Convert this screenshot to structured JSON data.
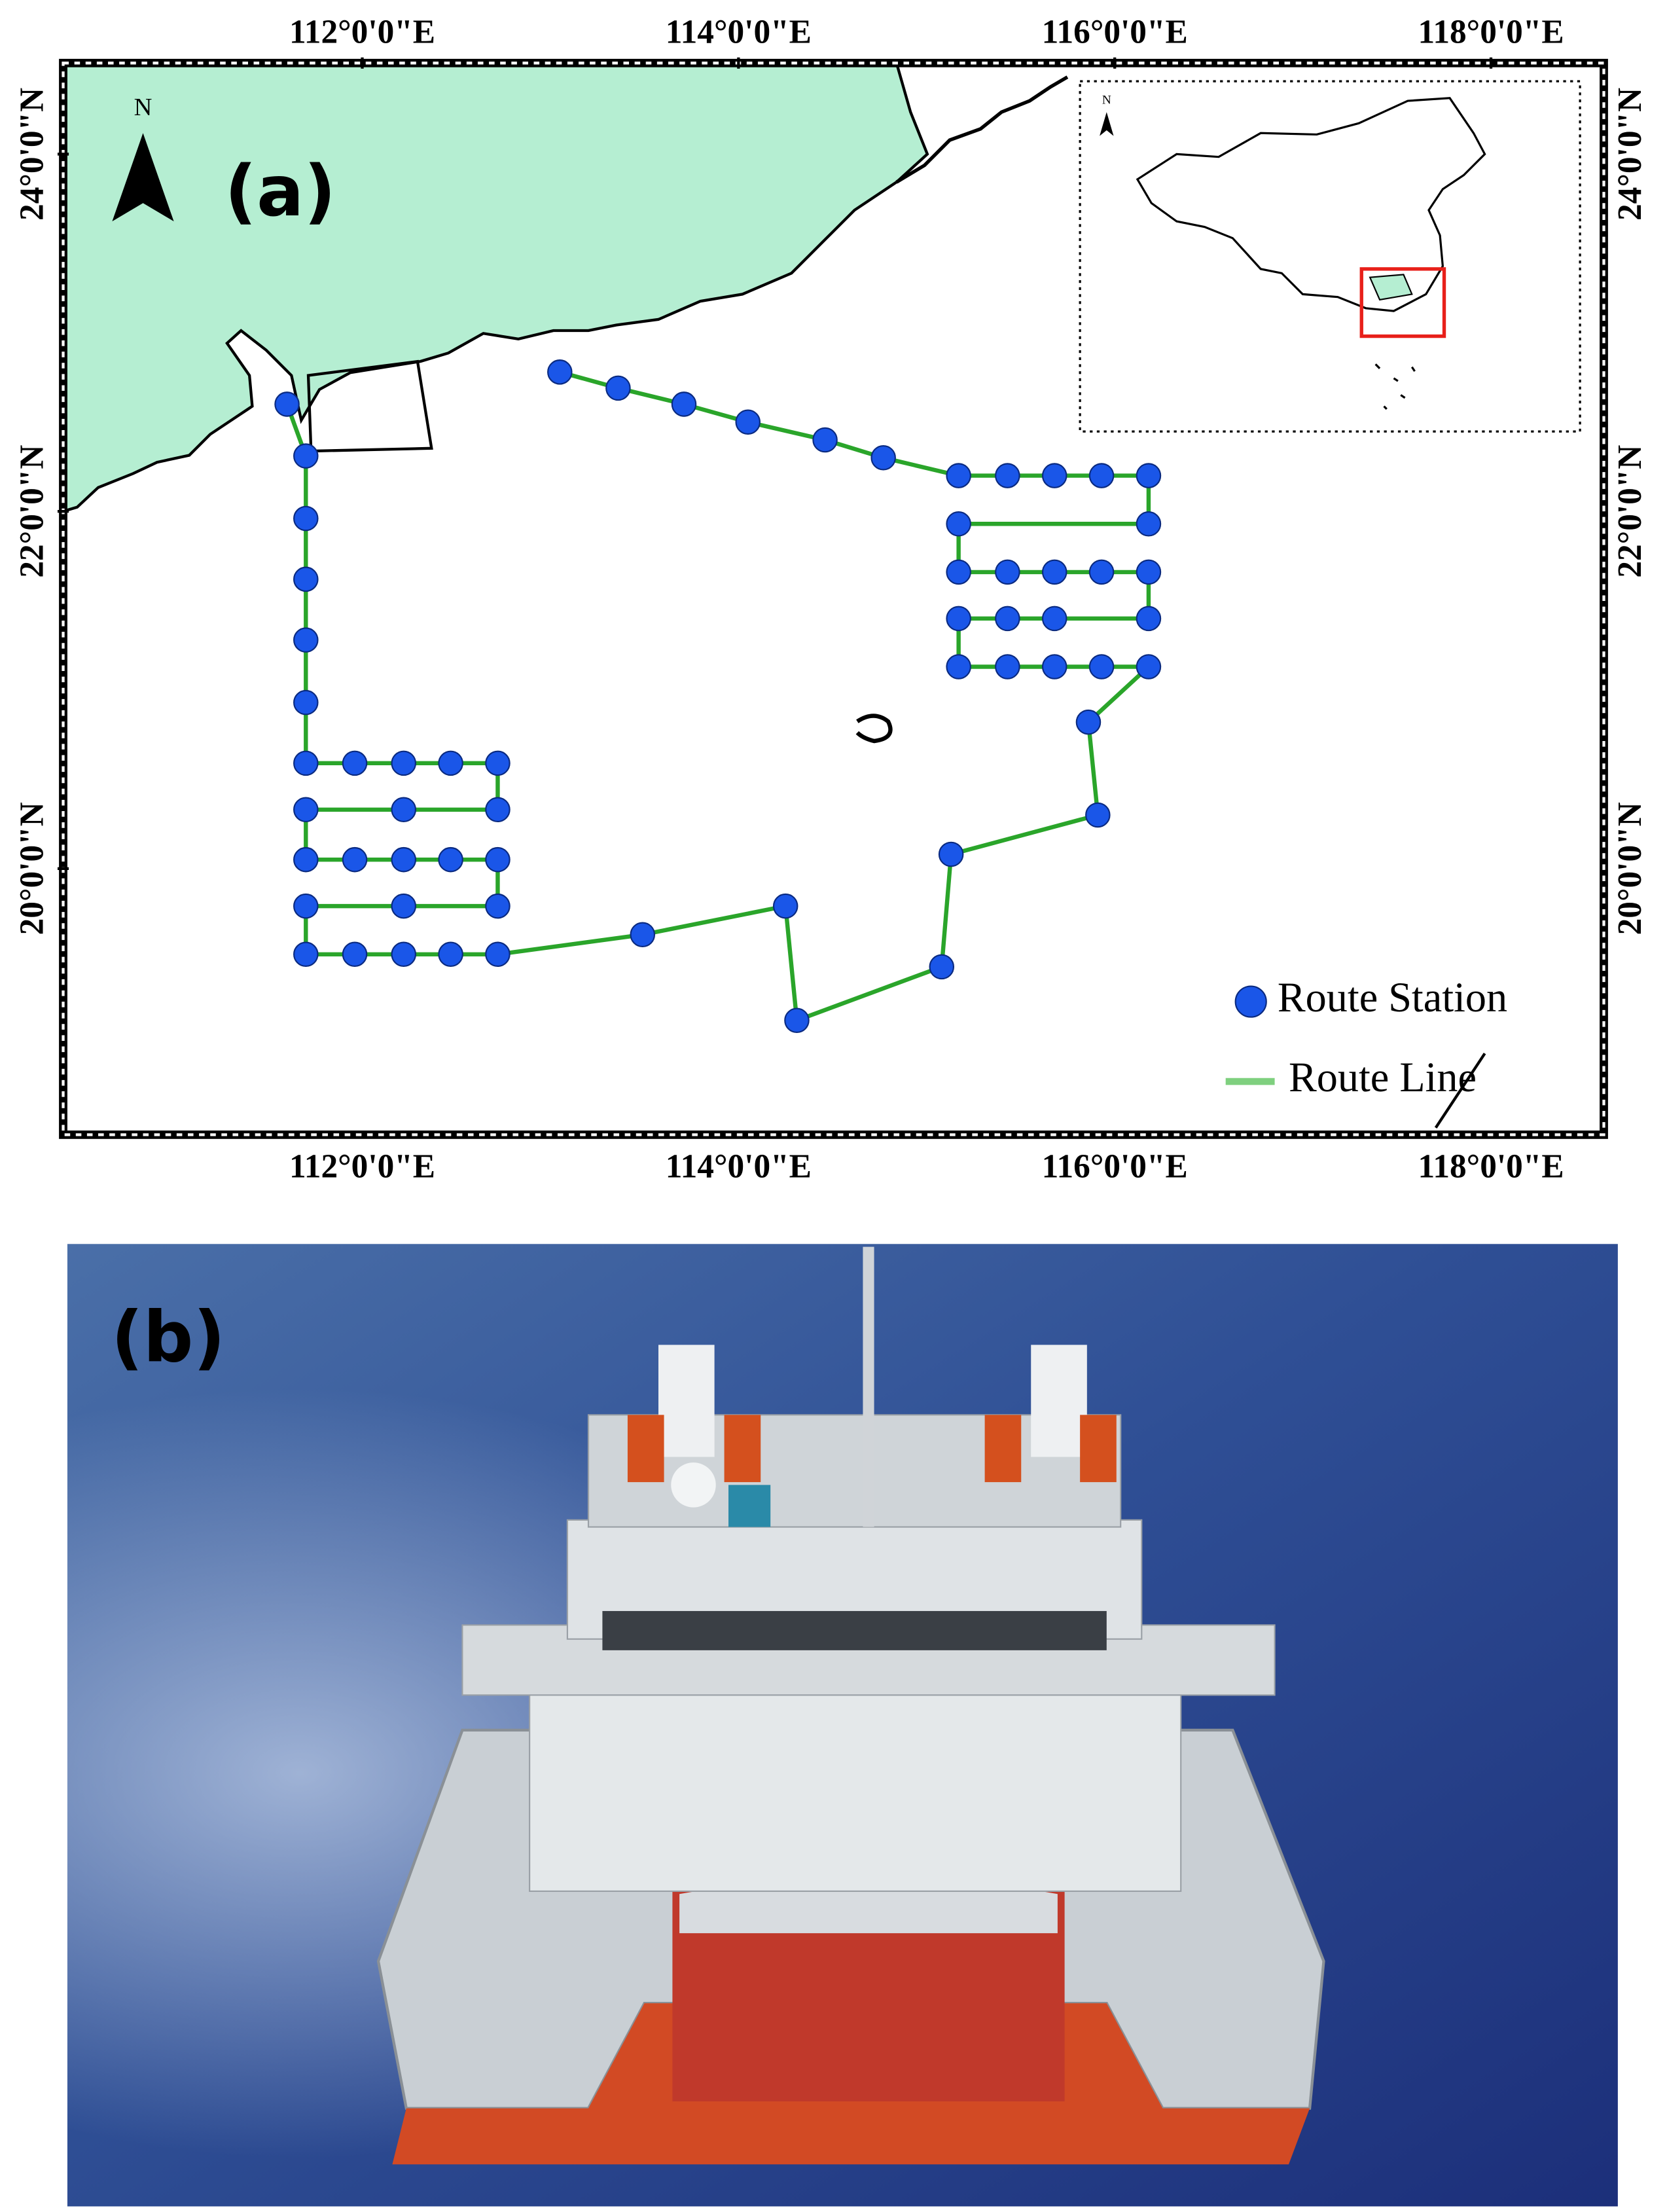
{
  "chart_data": {
    "type": "map",
    "panel_a_label": "(a)",
    "panel_b_label": "(b)",
    "north_label": "N",
    "inset_north_label": "N",
    "legend": {
      "station": "Route Station",
      "line": "Route Line"
    },
    "xlim": [
      110.41,
      118.6
    ],
    "ylim": [
      18.51,
      24.51
    ],
    "xticks": [
      {
        "value": 112,
        "label": "112°0'0\"E"
      },
      {
        "value": 114,
        "label": "114°0'0\"E"
      },
      {
        "value": 116,
        "label": "116°0'0\"E"
      },
      {
        "value": 118,
        "label": "118°0'0\"E"
      }
    ],
    "yticks": [
      {
        "value": 20,
        "label": "20°0'0\"N"
      },
      {
        "value": 22,
        "label": "22°0'0\"N"
      },
      {
        "value": 24,
        "label": "24°0'0\"N"
      }
    ],
    "station_color": "#1a56e8",
    "route_color": "#2aa52a",
    "stations": {
      "lon": [
        111.6,
        111.7,
        111.7,
        111.7,
        111.7,
        111.7,
        111.7,
        111.96,
        112.22,
        112.47,
        112.72,
        112.72,
        112.22,
        111.7,
        111.7,
        111.96,
        112.22,
        112.47,
        112.72,
        112.72,
        112.22,
        111.7,
        111.7,
        111.96,
        112.22,
        112.47,
        112.72,
        113.49,
        114.25,
        114.31,
        115.08,
        115.13,
        115.91,
        115.86,
        116.18,
        115.93,
        115.68,
        115.43,
        115.17,
        115.17,
        115.43,
        115.68,
        116.18,
        116.18,
        115.93,
        115.68,
        115.43,
        115.17,
        115.17,
        116.18,
        116.18,
        115.93,
        115.68,
        115.43,
        115.17,
        114.77,
        114.46,
        114.05,
        113.71,
        113.36,
        113.05
      ],
      "lat": [
        22.6,
        22.31,
        21.96,
        21.62,
        21.28,
        20.93,
        20.59,
        20.59,
        20.59,
        20.59,
        20.59,
        20.33,
        20.33,
        20.33,
        20.05,
        20.05,
        20.05,
        20.05,
        20.05,
        19.79,
        19.79,
        19.79,
        19.52,
        19.52,
        19.52,
        19.52,
        19.52,
        19.63,
        19.79,
        19.15,
        19.45,
        20.08,
        20.3,
        20.82,
        21.13,
        21.13,
        21.13,
        21.13,
        21.13,
        21.4,
        21.4,
        21.4,
        21.4,
        21.66,
        21.66,
        21.66,
        21.66,
        21.66,
        21.93,
        21.93,
        22.2,
        22.2,
        22.2,
        22.2,
        22.2,
        22.3,
        22.4,
        22.5,
        22.6,
        22.69,
        22.78
      ]
    }
  }
}
